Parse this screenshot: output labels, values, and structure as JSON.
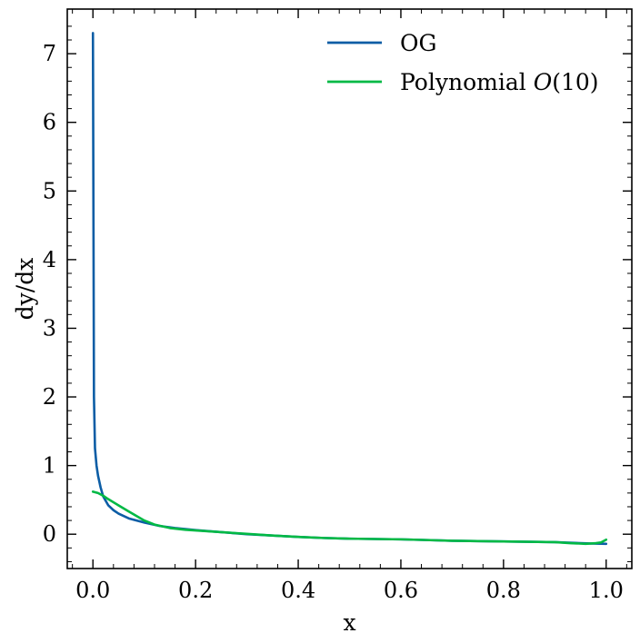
{
  "chart_data": {
    "type": "line",
    "title": "",
    "xlabel": "x",
    "ylabel": "dy/dx",
    "xlim": [
      -0.05,
      1.05
    ],
    "ylim": [
      -0.5,
      7.65
    ],
    "xticks": [
      0.0,
      0.2,
      0.4,
      0.6,
      0.8,
      1.0
    ],
    "xtick_labels": [
      "0.0",
      "0.2",
      "0.4",
      "0.6",
      "0.8",
      "1.0"
    ],
    "yticks": [
      0,
      1,
      2,
      3,
      4,
      5,
      6,
      7
    ],
    "ytick_labels": [
      "0",
      "1",
      "2",
      "3",
      "4",
      "5",
      "6",
      "7"
    ],
    "grid": false,
    "legend_position": "top-right",
    "series": [
      {
        "name": "OG",
        "color": "#0c5da5",
        "x": [
          0.0,
          0.002,
          0.004,
          0.007,
          0.01,
          0.015,
          0.02,
          0.03,
          0.04,
          0.05,
          0.07,
          0.1,
          0.13,
          0.16,
          0.2,
          0.25,
          0.3,
          0.35,
          0.4,
          0.45,
          0.5,
          0.55,
          0.6,
          0.65,
          0.7,
          0.75,
          0.8,
          0.85,
          0.9,
          0.95,
          0.97,
          1.0
        ],
        "y": [
          7.3,
          2.0,
          1.25,
          1.0,
          0.85,
          0.68,
          0.55,
          0.42,
          0.35,
          0.3,
          0.23,
          0.17,
          0.12,
          0.09,
          0.06,
          0.03,
          0.0,
          -0.02,
          -0.04,
          -0.055,
          -0.065,
          -0.07,
          -0.075,
          -0.085,
          -0.095,
          -0.1,
          -0.105,
          -0.11,
          -0.115,
          -0.13,
          -0.135,
          -0.14
        ]
      },
      {
        "name": "Polynomial O(10)",
        "color": "#00b945",
        "x": [
          0.0,
          0.01,
          0.02,
          0.03,
          0.05,
          0.07,
          0.1,
          0.12,
          0.15,
          0.18,
          0.2,
          0.25,
          0.3,
          0.35,
          0.4,
          0.45,
          0.5,
          0.55,
          0.6,
          0.65,
          0.7,
          0.75,
          0.8,
          0.85,
          0.9,
          0.93,
          0.96,
          0.98,
          0.99,
          1.0
        ],
        "y": [
          0.62,
          0.6,
          0.56,
          0.51,
          0.42,
          0.33,
          0.2,
          0.14,
          0.09,
          0.065,
          0.055,
          0.03,
          0.005,
          -0.02,
          -0.04,
          -0.055,
          -0.065,
          -0.07,
          -0.075,
          -0.085,
          -0.095,
          -0.1,
          -0.105,
          -0.11,
          -0.115,
          -0.13,
          -0.14,
          -0.13,
          -0.12,
          -0.08
        ]
      }
    ],
    "legend_labels": {
      "og": "OG",
      "poly_prefix": "Polynomial ",
      "poly_math": "O",
      "poly_suffix": "(10)"
    }
  }
}
